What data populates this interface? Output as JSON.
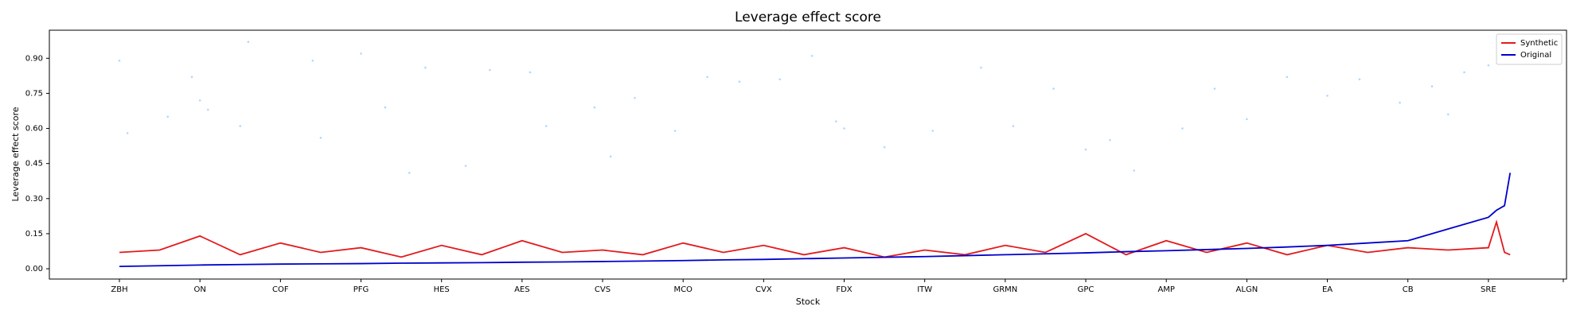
{
  "chart_data": {
    "type": "line",
    "title": "Leverage effect score",
    "xlabel": "Stock",
    "ylabel": "Leverage effect score",
    "xlim": [
      -0.87,
      17.97
    ],
    "xticks": [
      {
        "value": 0,
        "label": "ZBH"
      },
      {
        "value": 1,
        "label": "ON"
      },
      {
        "value": 2,
        "label": "COF"
      },
      {
        "value": 3,
        "label": "PFG"
      },
      {
        "value": 4,
        "label": "HES"
      },
      {
        "value": 5,
        "label": "AES"
      },
      {
        "value": 6,
        "label": "CVS"
      },
      {
        "value": 7,
        "label": "MCO"
      },
      {
        "value": 8,
        "label": "CVX"
      },
      {
        "value": 9,
        "label": "FDX"
      },
      {
        "value": 10,
        "label": "ITW"
      },
      {
        "value": 11,
        "label": "GRMN"
      },
      {
        "value": 12,
        "label": "GPC"
      },
      {
        "value": 13,
        "label": "AMP"
      },
      {
        "value": 14,
        "label": "ALGN"
      },
      {
        "value": 15,
        "label": "EA"
      },
      {
        "value": 16,
        "label": "CB"
      },
      {
        "value": 17,
        "label": "SRE"
      },
      {
        "value": 17.93,
        "label": null
      }
    ],
    "ylim": [
      -0.044,
      1.02
    ],
    "yticks": [
      {
        "value": 0,
        "label": "0.00"
      },
      {
        "value": 0.15,
        "label": "0.15"
      },
      {
        "value": 0.3,
        "label": "0.30"
      },
      {
        "value": 0.45,
        "label": "0.45"
      },
      {
        "value": 0.6,
        "label": "0.60"
      },
      {
        "value": 0.75,
        "label": "0.75"
      },
      {
        "value": 0.9,
        "label": "0.90"
      }
    ],
    "legend": "upper right",
    "scatter": {
      "color": "#1e90ff",
      "x": [
        0.0,
        0.1,
        0.6,
        0.9,
        1.0,
        1.1,
        1.6,
        1.5,
        2.4,
        2.5,
        3.0,
        3.3,
        3.8,
        4.3,
        4.6,
        5.1,
        5.3,
        5.9,
        6.4,
        6.9,
        7.3,
        7.7,
        8.2,
        8.6,
        8.9,
        9.0,
        9.5,
        10.1,
        10.7,
        11.1,
        11.6,
        12.0,
        12.6,
        13.2,
        13.6,
        14.0,
        14.5,
        15.0,
        15.4,
        15.9,
        16.3,
        16.7,
        17.0,
        17.2,
        16.5,
        12.3,
        6.1,
        3.6
      ],
      "values": [
        0.89,
        0.58,
        0.65,
        0.82,
        0.72,
        0.68,
        0.97,
        0.61,
        0.89,
        0.56,
        0.92,
        0.69,
        0.86,
        0.44,
        0.85,
        0.84,
        0.61,
        0.69,
        0.73,
        0.59,
        0.82,
        0.8,
        0.81,
        0.91,
        0.63,
        0.6,
        0.52,
        0.59,
        0.86,
        0.61,
        0.77,
        0.51,
        0.42,
        0.6,
        0.77,
        0.64,
        0.82,
        0.74,
        0.81,
        0.71,
        0.78,
        0.84,
        0.87,
        0.96,
        0.66,
        0.55,
        0.48,
        0.41
      ]
    },
    "series": [
      {
        "name": "Synthetic",
        "color": "#e31a1c",
        "x": [
          0,
          0.5,
          1,
          1.5,
          2,
          2.5,
          3,
          3.5,
          4,
          4.5,
          5,
          5.5,
          6,
          6.5,
          7,
          7.5,
          8,
          8.5,
          9,
          9.5,
          10,
          10.5,
          11,
          11.5,
          12,
          12.5,
          13,
          13.5,
          14,
          14.5,
          15,
          15.5,
          16,
          16.5,
          17,
          17.1,
          17.2,
          17.27
        ],
        "values": [
          0.07,
          0.08,
          0.14,
          0.06,
          0.11,
          0.07,
          0.09,
          0.05,
          0.1,
          0.06,
          0.12,
          0.07,
          0.08,
          0.06,
          0.11,
          0.07,
          0.1,
          0.06,
          0.09,
          0.05,
          0.08,
          0.06,
          0.1,
          0.07,
          0.15,
          0.06,
          0.12,
          0.07,
          0.11,
          0.06,
          0.1,
          0.07,
          0.09,
          0.08,
          0.09,
          0.2,
          0.07,
          0.06
        ]
      },
      {
        "name": "Original",
        "color": "#0000cd",
        "x": [
          0,
          0.5,
          1,
          1.5,
          2,
          2.5,
          3,
          3.5,
          4,
          4.5,
          5,
          5.5,
          6,
          6.5,
          7,
          7.5,
          8,
          8.5,
          9,
          9.5,
          10,
          10.5,
          11,
          11.5,
          12,
          12.5,
          13,
          13.5,
          14,
          14.5,
          15,
          15.5,
          16,
          16.5,
          17,
          17.1,
          17.2,
          17.27
        ],
        "values": [
          0.01,
          0.013,
          0.016,
          0.018,
          0.02,
          0.021,
          0.022,
          0.024,
          0.025,
          0.026,
          0.028,
          0.029,
          0.031,
          0.033,
          0.035,
          0.038,
          0.04,
          0.043,
          0.046,
          0.049,
          0.052,
          0.056,
          0.06,
          0.064,
          0.068,
          0.073,
          0.077,
          0.082,
          0.087,
          0.093,
          0.1,
          0.11,
          0.12,
          0.17,
          0.22,
          0.25,
          0.27,
          0.41
        ]
      }
    ]
  }
}
